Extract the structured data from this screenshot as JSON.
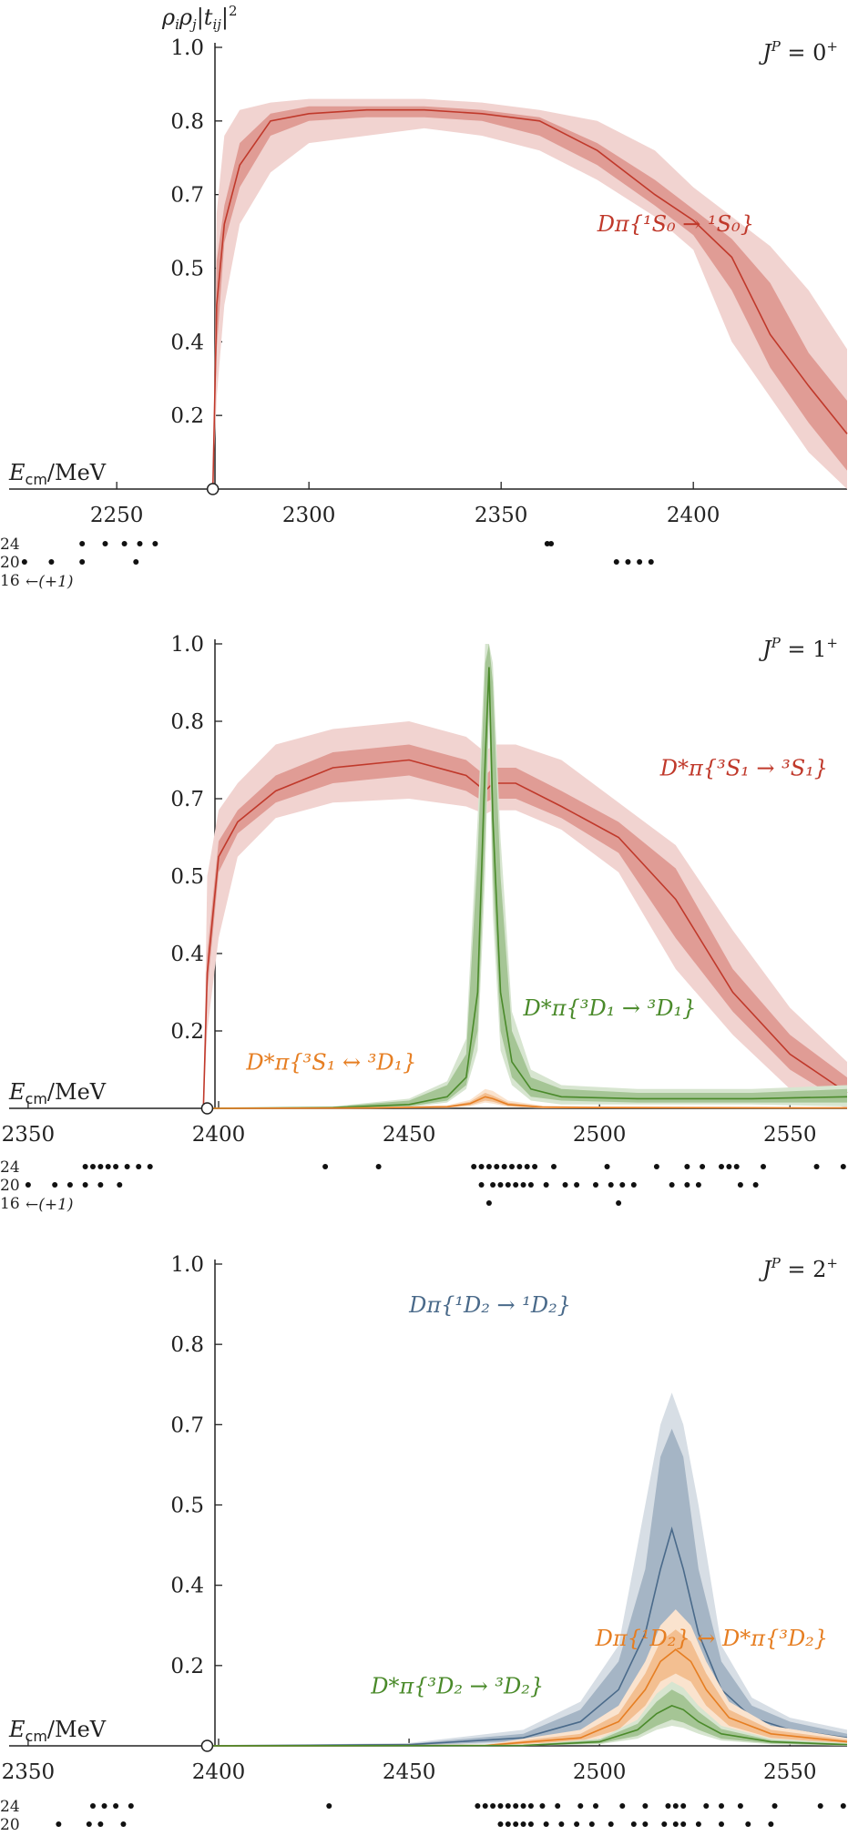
{
  "chart_data": [
    {
      "type": "line",
      "panel": "J0",
      "jp_label": "J^P = 0^+",
      "ylabel": "ρ_i ρ_j |t_ij|²",
      "xlabel": "E_cm/MeV",
      "xlim": [
        2222,
        2440
      ],
      "ylim": [
        0,
        1.0
      ],
      "threshold": 2275,
      "yticks": [
        {
          "v": 0.2,
          "label": "0.2"
        },
        {
          "v": 0.4,
          "label": "0.4"
        },
        {
          "v": 0.5,
          "label": "0.5"
        },
        {
          "v": 0.7,
          "label": "0.7"
        },
        {
          "v": 0.8,
          "label": "0.8"
        },
        {
          "v": 1.0,
          "label": "1.0"
        }
      ],
      "xticks": [
        2250,
        2300,
        2350,
        2400
      ],
      "series": [
        {
          "name": "Dπ{¹S₀ → ¹S₀}",
          "color": "#c0392b",
          "label_pos": [
            2375,
            0.6
          ],
          "x": [
            2275,
            2276,
            2278,
            2282,
            2290,
            2300,
            2315,
            2330,
            2345,
            2360,
            2375,
            2390,
            2400,
            2410,
            2420,
            2430,
            2440
          ],
          "y": [
            0.0,
            0.45,
            0.62,
            0.74,
            0.8,
            0.82,
            0.83,
            0.83,
            0.82,
            0.8,
            0.76,
            0.7,
            0.63,
            0.53,
            0.41,
            0.28,
            0.15
          ],
          "inner_lo": [
            0.0,
            0.38,
            0.57,
            0.71,
            0.78,
            0.8,
            0.81,
            0.81,
            0.8,
            0.78,
            0.74,
            0.67,
            0.59,
            0.47,
            0.33,
            0.18,
            0.05
          ],
          "inner_hi": [
            0.0,
            0.52,
            0.67,
            0.77,
            0.82,
            0.84,
            0.84,
            0.84,
            0.83,
            0.81,
            0.77,
            0.72,
            0.66,
            0.58,
            0.48,
            0.37,
            0.24
          ],
          "outer_lo": [
            0.0,
            0.25,
            0.45,
            0.62,
            0.73,
            0.77,
            0.78,
            0.79,
            0.78,
            0.76,
            0.72,
            0.64,
            0.55,
            0.4,
            0.25,
            0.1,
            0.0
          ],
          "outer_hi": [
            0.0,
            0.65,
            0.78,
            0.83,
            0.85,
            0.86,
            0.86,
            0.86,
            0.85,
            0.83,
            0.8,
            0.76,
            0.71,
            0.64,
            0.56,
            0.47,
            0.38
          ]
        }
      ],
      "levels": {
        "labels": [
          "24",
          "20",
          "16"
        ],
        "arrow_text": "←(+1)",
        "rows": [
          [
            2241,
            2247,
            2252,
            2256,
            2260,
            2362,
            2363
          ],
          [
            2226,
            2233,
            2241,
            2255,
            2380,
            2383,
            2386,
            2389
          ],
          []
        ]
      }
    },
    {
      "type": "line",
      "panel": "J1",
      "jp_label": "J^P = 1^+",
      "xlabel": "E_cm/MeV",
      "xlim": [
        2345,
        2565
      ],
      "ylim": [
        0,
        1.0
      ],
      "threshold": 2397,
      "yticks": [
        {
          "v": 0.2,
          "label": "0.2"
        },
        {
          "v": 0.4,
          "label": "0.4"
        },
        {
          "v": 0.5,
          "label": "0.5"
        },
        {
          "v": 0.7,
          "label": "0.7"
        },
        {
          "v": 0.8,
          "label": "0.8"
        },
        {
          "v": 1.0,
          "label": "1.0"
        }
      ],
      "xticks": [
        2350,
        2400,
        2450,
        2500,
        2550
      ],
      "series": [
        {
          "name": "D*π{³S₁ → ³S₁}",
          "color": "#c0392b",
          "label_pos": [
            2560,
            0.73
          ],
          "label_anchor": "end",
          "x": [
            2396,
            2397,
            2400,
            2405,
            2415,
            2430,
            2450,
            2465,
            2470,
            2472,
            2478,
            2490,
            2505,
            2520,
            2535,
            2550,
            2565
          ],
          "y": [
            0.0,
            0.35,
            0.55,
            0.64,
            0.71,
            0.74,
            0.75,
            0.73,
            0.71,
            0.72,
            0.72,
            0.68,
            0.6,
            0.47,
            0.3,
            0.14,
            0.04
          ],
          "inner_lo": [
            0.0,
            0.3,
            0.51,
            0.61,
            0.69,
            0.72,
            0.73,
            0.71,
            0.69,
            0.7,
            0.7,
            0.65,
            0.56,
            0.42,
            0.25,
            0.1,
            0.01
          ],
          "inner_hi": [
            0.0,
            0.4,
            0.59,
            0.67,
            0.73,
            0.76,
            0.77,
            0.75,
            0.73,
            0.74,
            0.74,
            0.71,
            0.64,
            0.52,
            0.36,
            0.19,
            0.08
          ],
          "outer_lo": [
            0.0,
            0.2,
            0.42,
            0.55,
            0.65,
            0.69,
            0.7,
            0.68,
            0.66,
            0.67,
            0.67,
            0.62,
            0.51,
            0.36,
            0.19,
            0.05,
            0.0
          ],
          "outer_hi": [
            0.0,
            0.5,
            0.67,
            0.72,
            0.77,
            0.79,
            0.8,
            0.78,
            0.76,
            0.77,
            0.77,
            0.75,
            0.69,
            0.58,
            0.43,
            0.26,
            0.12
          ]
        },
        {
          "name": "D*π{³D₁ → ³D₁}",
          "color": "#4a8a2a",
          "label_pos": [
            2480,
            0.24
          ],
          "x": [
            2397,
            2430,
            2450,
            2460,
            2465,
            2468,
            2470,
            2471,
            2472,
            2474,
            2477,
            2482,
            2490,
            2510,
            2540,
            2565
          ],
          "y": [
            0.0,
            0.002,
            0.01,
            0.03,
            0.08,
            0.3,
            0.75,
            0.94,
            0.65,
            0.3,
            0.12,
            0.05,
            0.03,
            0.025,
            0.025,
            0.03
          ],
          "inner_lo": [
            0.0,
            0.0,
            0.005,
            0.02,
            0.06,
            0.2,
            0.6,
            0.85,
            0.5,
            0.2,
            0.08,
            0.03,
            0.02,
            0.015,
            0.015,
            0.015
          ],
          "inner_hi": [
            0.0,
            0.004,
            0.02,
            0.06,
            0.14,
            0.55,
            0.95,
            1.0,
            0.9,
            0.5,
            0.2,
            0.08,
            0.05,
            0.04,
            0.04,
            0.05
          ],
          "outer_lo": [
            0.0,
            0.0,
            0.003,
            0.015,
            0.05,
            0.15,
            0.5,
            0.8,
            0.45,
            0.15,
            0.06,
            0.02,
            0.01,
            0.01,
            0.01,
            0.005
          ],
          "outer_hi": [
            0.0,
            0.005,
            0.025,
            0.07,
            0.18,
            0.65,
            1.0,
            1.0,
            0.95,
            0.6,
            0.25,
            0.1,
            0.06,
            0.05,
            0.05,
            0.06
          ]
        },
        {
          "name": "D*π{³S₁ ↔ ³D₁}",
          "color": "#e67e22",
          "label_pos": [
            2452,
            0.1
          ],
          "label_anchor": "end",
          "x": [
            2397,
            2440,
            2460,
            2466,
            2470,
            2472,
            2476,
            2485,
            2500,
            2565
          ],
          "y": [
            0.0,
            0.001,
            0.004,
            0.012,
            0.03,
            0.025,
            0.01,
            0.003,
            0.002,
            0.001
          ],
          "inner_lo": [
            0.0,
            0.0,
            0.002,
            0.008,
            0.02,
            0.017,
            0.006,
            0.001,
            0.0,
            0.0
          ],
          "inner_hi": [
            0.0,
            0.002,
            0.006,
            0.017,
            0.04,
            0.033,
            0.015,
            0.005,
            0.004,
            0.002
          ],
          "outer_lo": [
            0.0,
            0.0,
            0.001,
            0.005,
            0.015,
            0.012,
            0.004,
            0.0,
            0.0,
            0.0
          ],
          "outer_hi": [
            0.0,
            0.003,
            0.008,
            0.022,
            0.05,
            0.045,
            0.02,
            0.007,
            0.005,
            0.003
          ]
        }
      ],
      "levels": {
        "labels": [
          "24",
          "20",
          "16"
        ],
        "arrow_text": "←(+1)",
        "rows": [
          [
            2365,
            2367,
            2369,
            2371,
            2373,
            2376,
            2379,
            2382,
            2428,
            2442,
            2467,
            2469,
            2471,
            2473,
            2475,
            2477,
            2479,
            2481,
            2483,
            2488,
            2502,
            2515,
            2523,
            2527,
            2532,
            2534,
            2536,
            2543,
            2557,
            2564
          ],
          [
            2350,
            2357,
            2361,
            2365,
            2369,
            2374,
            2469,
            2472,
            2474,
            2476,
            2478,
            2480,
            2482,
            2486,
            2491,
            2494,
            2499,
            2503,
            2506,
            2509,
            2519,
            2523,
            2526,
            2537,
            2541
          ],
          [
            2471,
            2505
          ]
        ]
      }
    },
    {
      "type": "line",
      "panel": "J2",
      "jp_label": "J^P = 2^+",
      "xlabel": "E_cm/MeV",
      "xlim": [
        2345,
        2565
      ],
      "ylim": [
        0,
        1.0
      ],
      "threshold": 2397,
      "yticks": [
        {
          "v": 0.2,
          "label": "0.2"
        },
        {
          "v": 0.4,
          "label": "0.4"
        },
        {
          "v": 0.5,
          "label": "0.5"
        },
        {
          "v": 0.7,
          "label": "0.7"
        },
        {
          "v": 0.8,
          "label": "0.8"
        },
        {
          "v": 1.0,
          "label": "1.0"
        }
      ],
      "xticks": [
        2350,
        2400,
        2450,
        2500,
        2550
      ],
      "series": [
        {
          "name": "Dπ{¹D₂ → ¹D₂}",
          "color": "#4a6a8a",
          "label_pos": [
            2450,
            0.88
          ],
          "x": [
            2397,
            2450,
            2480,
            2495,
            2505,
            2512,
            2516,
            2519,
            2522,
            2526,
            2532,
            2540,
            2550,
            2565
          ],
          "y": [
            0.0,
            0.003,
            0.02,
            0.06,
            0.14,
            0.28,
            0.42,
            0.47,
            0.42,
            0.28,
            0.14,
            0.07,
            0.04,
            0.02
          ],
          "inner_lo": [
            0.0,
            0.001,
            0.012,
            0.04,
            0.09,
            0.18,
            0.28,
            0.31,
            0.28,
            0.18,
            0.09,
            0.045,
            0.025,
            0.01
          ],
          "inner_hi": [
            0.0,
            0.005,
            0.03,
            0.09,
            0.21,
            0.42,
            0.62,
            0.69,
            0.62,
            0.42,
            0.21,
            0.1,
            0.06,
            0.03
          ],
          "outer_lo": [
            0.0,
            0.0,
            0.008,
            0.03,
            0.07,
            0.14,
            0.22,
            0.25,
            0.22,
            0.14,
            0.07,
            0.035,
            0.018,
            0.005
          ],
          "outer_hi": [
            0.0,
            0.007,
            0.04,
            0.11,
            0.25,
            0.5,
            0.7,
            0.74,
            0.7,
            0.5,
            0.25,
            0.12,
            0.07,
            0.04
          ]
        },
        {
          "name": "Dπ{¹D₂} ↔ D*π{³D₂}",
          "color": "#e67e22",
          "label_pos": [
            2560,
            0.25
          ],
          "label_anchor": "end",
          "x": [
            2397,
            2470,
            2495,
            2505,
            2512,
            2516,
            2520,
            2524,
            2528,
            2534,
            2545,
            2565
          ],
          "y": [
            0.0,
            0.001,
            0.02,
            0.06,
            0.14,
            0.21,
            0.24,
            0.21,
            0.14,
            0.07,
            0.03,
            0.01
          ],
          "inner_lo": [
            0.0,
            0.0,
            0.012,
            0.04,
            0.1,
            0.16,
            0.18,
            0.16,
            0.1,
            0.05,
            0.02,
            0.005
          ],
          "inner_hi": [
            0.0,
            0.002,
            0.03,
            0.08,
            0.18,
            0.26,
            0.29,
            0.26,
            0.18,
            0.09,
            0.04,
            0.015
          ],
          "outer_lo": [
            0.0,
            0.0,
            0.008,
            0.03,
            0.07,
            0.12,
            0.14,
            0.12,
            0.07,
            0.035,
            0.014,
            0.003
          ],
          "outer_hi": [
            0.0,
            0.003,
            0.04,
            0.1,
            0.21,
            0.3,
            0.34,
            0.3,
            0.21,
            0.11,
            0.05,
            0.02
          ]
        },
        {
          "name": "D*π{³D₂ → ³D₂}",
          "color": "#4a8a2a",
          "label_pos": [
            2440,
            0.13
          ],
          "x": [
            2397,
            2480,
            2500,
            2510,
            2515,
            2519,
            2522,
            2526,
            2532,
            2545,
            2565
          ],
          "y": [
            0.0,
            0.001,
            0.01,
            0.04,
            0.08,
            0.1,
            0.09,
            0.06,
            0.03,
            0.01,
            0.003
          ],
          "inner_lo": [
            0.0,
            0.0,
            0.006,
            0.025,
            0.05,
            0.065,
            0.058,
            0.04,
            0.018,
            0.006,
            0.001
          ],
          "inner_hi": [
            0.0,
            0.002,
            0.015,
            0.055,
            0.11,
            0.14,
            0.125,
            0.085,
            0.042,
            0.014,
            0.005
          ],
          "outer_lo": [
            0.0,
            0.0,
            0.004,
            0.018,
            0.04,
            0.05,
            0.045,
            0.03,
            0.013,
            0.004,
            0.0
          ],
          "outer_hi": [
            0.0,
            0.003,
            0.018,
            0.065,
            0.13,
            0.16,
            0.145,
            0.1,
            0.05,
            0.018,
            0.007
          ]
        }
      ],
      "levels": {
        "labels": [
          "24",
          "20"
        ],
        "rows": [
          [
            2367,
            2370,
            2373,
            2377,
            2429,
            2468,
            2470,
            2472,
            2474,
            2476,
            2478,
            2480,
            2482,
            2485,
            2489,
            2495,
            2499,
            2506,
            2512,
            2518,
            2520,
            2522,
            2528,
            2532,
            2537,
            2546,
            2558,
            2564
          ],
          [
            2358,
            2366,
            2369,
            2375,
            2474,
            2476,
            2478,
            2480,
            2482,
            2486,
            2490,
            2494,
            2498,
            2503,
            2509,
            2512,
            2517,
            2520,
            2522,
            2526,
            2532,
            2539,
            2545
          ]
        ]
      }
    }
  ]
}
